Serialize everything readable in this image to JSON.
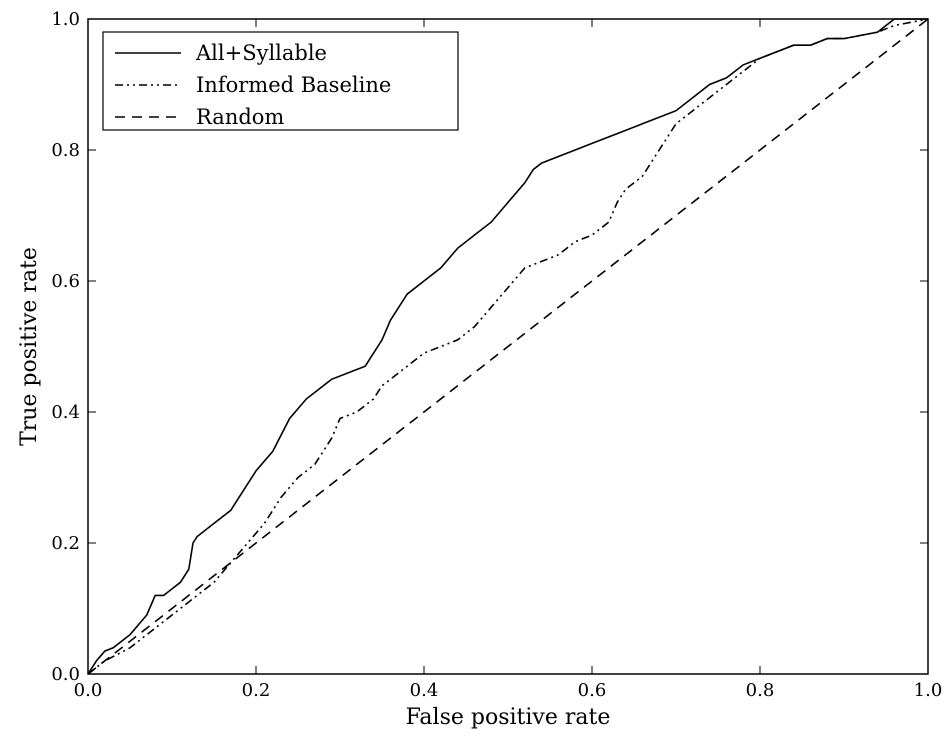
{
  "chart_data": {
    "type": "line",
    "title": "",
    "xlabel": "False positive rate",
    "ylabel": "True positive rate",
    "xlim": [
      0.0,
      1.0
    ],
    "ylim": [
      0.0,
      1.0
    ],
    "xticks": [
      "0.0",
      "0.2",
      "0.4",
      "0.6",
      "0.8",
      "1.0"
    ],
    "yticks": [
      "0.0",
      "0.2",
      "0.4",
      "0.6",
      "0.8",
      "1.0"
    ],
    "grid": false,
    "legend_position": "top-left",
    "series": [
      {
        "name": "All+Syllable",
        "style": "solid",
        "color": "#000000",
        "x": [
          0.0,
          0.01,
          0.02,
          0.03,
          0.05,
          0.07,
          0.08,
          0.09,
          0.1,
          0.11,
          0.12,
          0.125,
          0.13,
          0.15,
          0.17,
          0.18,
          0.2,
          0.22,
          0.24,
          0.26,
          0.27,
          0.29,
          0.31,
          0.33,
          0.34,
          0.35,
          0.36,
          0.37,
          0.38,
          0.4,
          0.42,
          0.44,
          0.46,
          0.48,
          0.5,
          0.52,
          0.53,
          0.54,
          0.56,
          0.58,
          0.6,
          0.62,
          0.64,
          0.66,
          0.68,
          0.7,
          0.72,
          0.74,
          0.76,
          0.78,
          0.8,
          0.82,
          0.84,
          0.86,
          0.88,
          0.9,
          0.92,
          0.94,
          0.95,
          0.96,
          1.0
        ],
        "y": [
          0.0,
          0.02,
          0.035,
          0.04,
          0.06,
          0.09,
          0.12,
          0.12,
          0.13,
          0.14,
          0.16,
          0.2,
          0.21,
          0.23,
          0.25,
          0.27,
          0.31,
          0.34,
          0.39,
          0.42,
          0.43,
          0.45,
          0.46,
          0.47,
          0.49,
          0.51,
          0.54,
          0.56,
          0.58,
          0.6,
          0.62,
          0.65,
          0.67,
          0.69,
          0.72,
          0.75,
          0.77,
          0.78,
          0.79,
          0.8,
          0.81,
          0.82,
          0.83,
          0.84,
          0.85,
          0.86,
          0.88,
          0.9,
          0.91,
          0.93,
          0.94,
          0.95,
          0.96,
          0.96,
          0.97,
          0.97,
          0.975,
          0.98,
          0.99,
          1.0,
          1.0
        ]
      },
      {
        "name": "Informed Baseline",
        "style": "dash-dot-dot",
        "color": "#000000",
        "x": [
          0.0,
          0.02,
          0.05,
          0.08,
          0.11,
          0.13,
          0.15,
          0.17,
          0.19,
          0.21,
          0.23,
          0.25,
          0.27,
          0.29,
          0.3,
          0.32,
          0.34,
          0.35,
          0.36,
          0.38,
          0.4,
          0.42,
          0.44,
          0.46,
          0.48,
          0.5,
          0.52,
          0.54,
          0.56,
          0.58,
          0.6,
          0.62,
          0.63,
          0.64,
          0.66,
          0.68,
          0.7,
          0.72,
          0.74,
          0.76,
          0.78,
          0.8,
          0.82,
          0.84,
          0.86,
          0.88,
          0.9,
          0.92,
          0.94,
          0.96,
          1.0
        ],
        "y": [
          0.0,
          0.02,
          0.04,
          0.07,
          0.1,
          0.12,
          0.14,
          0.17,
          0.2,
          0.23,
          0.27,
          0.3,
          0.32,
          0.36,
          0.39,
          0.4,
          0.42,
          0.44,
          0.45,
          0.47,
          0.49,
          0.5,
          0.51,
          0.53,
          0.56,
          0.59,
          0.62,
          0.63,
          0.64,
          0.66,
          0.67,
          0.69,
          0.72,
          0.74,
          0.76,
          0.8,
          0.84,
          0.86,
          0.88,
          0.9,
          0.92,
          0.94,
          0.95,
          0.96,
          0.96,
          0.97,
          0.97,
          0.975,
          0.98,
          0.99,
          1.0
        ]
      },
      {
        "name": "Random",
        "style": "dashed",
        "color": "#000000",
        "x": [
          0.0,
          1.0
        ],
        "y": [
          0.0,
          1.0
        ]
      }
    ]
  }
}
